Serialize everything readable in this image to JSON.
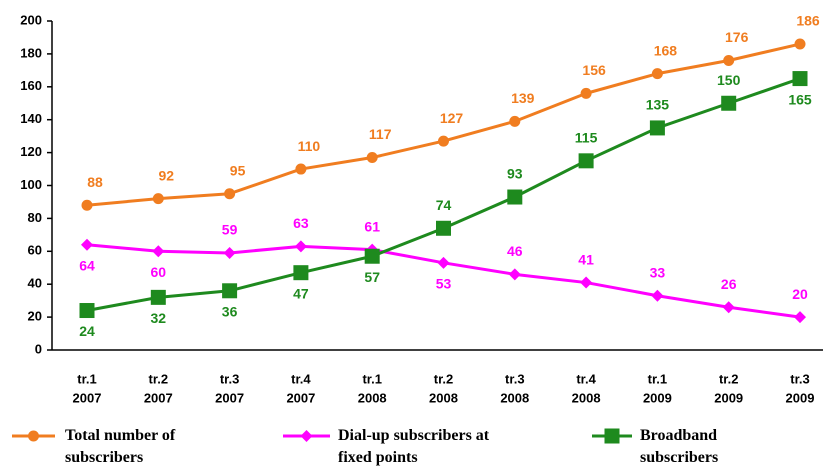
{
  "chart_data": {
    "type": "line",
    "categories": [
      [
        "tr.1",
        "2007"
      ],
      [
        "tr.2",
        "2007"
      ],
      [
        "tr.3",
        "2007"
      ],
      [
        "tr.4",
        "2007"
      ],
      [
        "tr.1",
        "2008"
      ],
      [
        "tr.2",
        "2008"
      ],
      [
        "tr.3",
        "2008"
      ],
      [
        "tr.4",
        "2008"
      ],
      [
        "tr.1",
        "2009"
      ],
      [
        "tr.2",
        "2009"
      ],
      [
        "tr.3",
        "2009"
      ]
    ],
    "series": [
      {
        "name": "Total number of subscribers",
        "color": "#f07d20",
        "marker": "circle",
        "values": [
          88,
          92,
          95,
          110,
          117,
          127,
          139,
          156,
          168,
          176,
          186
        ]
      },
      {
        "name": "Dial-up subscribers at fixed points",
        "color": "#ff00ff",
        "marker": "diamond",
        "values": [
          64,
          60,
          59,
          63,
          61,
          53,
          46,
          41,
          33,
          26,
          20
        ]
      },
      {
        "name": "Broadband subscribers",
        "color": "#1e8a1e",
        "marker": "square",
        "values": [
          24,
          32,
          36,
          47,
          57,
          74,
          93,
          115,
          135,
          150,
          165
        ]
      }
    ],
    "ylim": [
      0,
      200
    ],
    "yticks": [
      0,
      20,
      40,
      60,
      80,
      100,
      120,
      140,
      160,
      180,
      200
    ],
    "grid": false,
    "legend": "bottom"
  }
}
